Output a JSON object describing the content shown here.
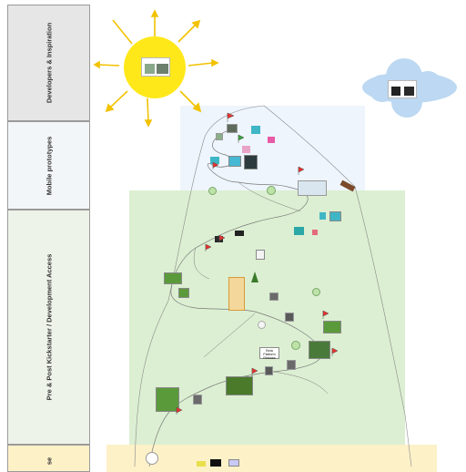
{
  "lanes": [
    {
      "id": "dev",
      "label": "Developers & Inspiration"
    },
    {
      "id": "mobile",
      "label": "Mobile prototypes"
    },
    {
      "id": "pre",
      "label": "Pre & Post Kickstarter / Development Access"
    },
    {
      "id": "release",
      "label": "se"
    }
  ],
  "cards": {
    "sun_card_title": "",
    "cloud_card_title": "",
    "popup_note": "Beta Platform Release"
  },
  "colors": {
    "sun": "#ffe81a",
    "sun_rays": "#f2c200",
    "cloud": "#bcd8f2",
    "mobile_region": "#eef5fc",
    "pre_region": "#dcefd2",
    "release_region": "#fdf1c8",
    "path": "#7a7a7a",
    "flag_red": "#e8312f",
    "flag_green": "#35a53a",
    "thumb_green": "#5a9a3a",
    "thumb_teal": "#3fb6c6"
  },
  "icons": [
    "sun-icon",
    "cloud-icon",
    "flag-icon",
    "tree-icon",
    "ship-icon",
    "avatar-icon"
  ]
}
